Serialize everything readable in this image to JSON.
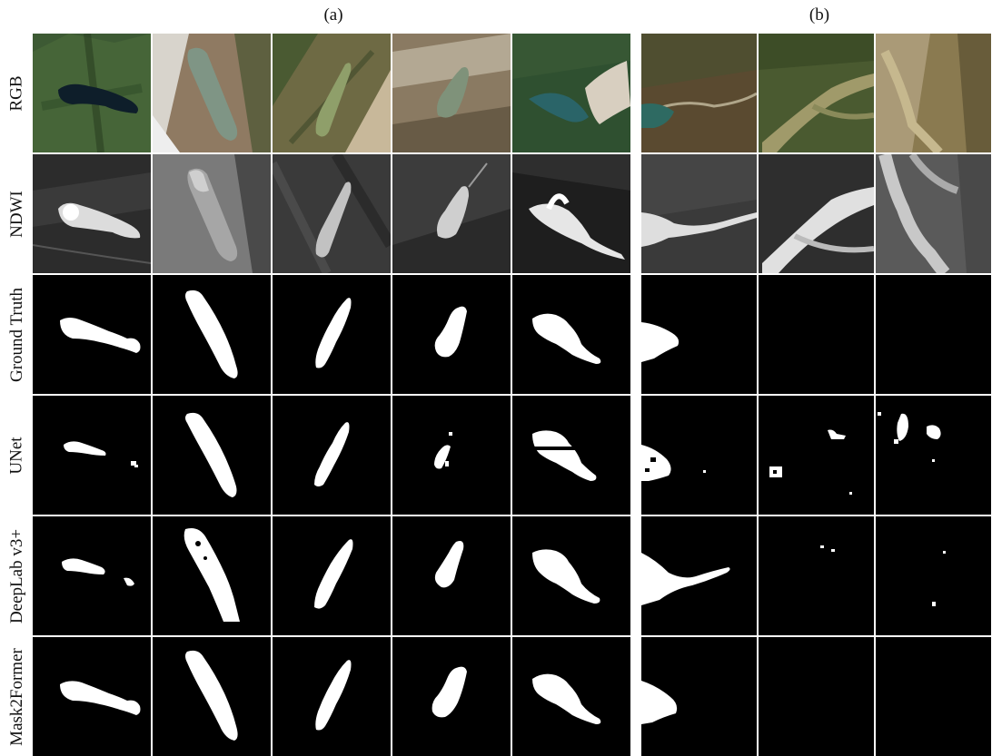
{
  "panels": {
    "a": {
      "label": "(a)",
      "columns": 5
    },
    "b": {
      "label": "(b)",
      "columns": 3
    }
  },
  "rows": [
    {
      "id": "rgb",
      "label": "RGB"
    },
    {
      "id": "ndwi",
      "label": "NDWI"
    },
    {
      "id": "gt",
      "label": "Ground Truth"
    },
    {
      "id": "unet",
      "label": "UNet"
    },
    {
      "id": "deeplab",
      "label": "DeepLab v3+"
    },
    {
      "id": "mask2former",
      "label": "Mask2Former"
    }
  ],
  "colors": {
    "mask_background": "#000000",
    "mask_foreground": "#ffffff",
    "grid_line": "#ffffff"
  }
}
